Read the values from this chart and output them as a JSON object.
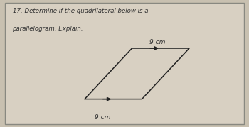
{
  "title_line1": "17. Determine if the quadrilateral below is a",
  "title_line2": "parallelogram. Explain.",
  "bg_color": "#c8c0b0",
  "box_color": "#d8d0c2",
  "box_edge_color": "#888880",
  "parallelogram": {
    "x": [
      0.34,
      0.57,
      0.76,
      0.53
    ],
    "y": [
      0.22,
      0.22,
      0.62,
      0.62
    ]
  },
  "label_top": "9 cm",
  "label_bottom": "9 cm",
  "text_color": "#333333",
  "line_color": "#222222",
  "font_size_label": 6.5,
  "font_size_title": 6.2
}
